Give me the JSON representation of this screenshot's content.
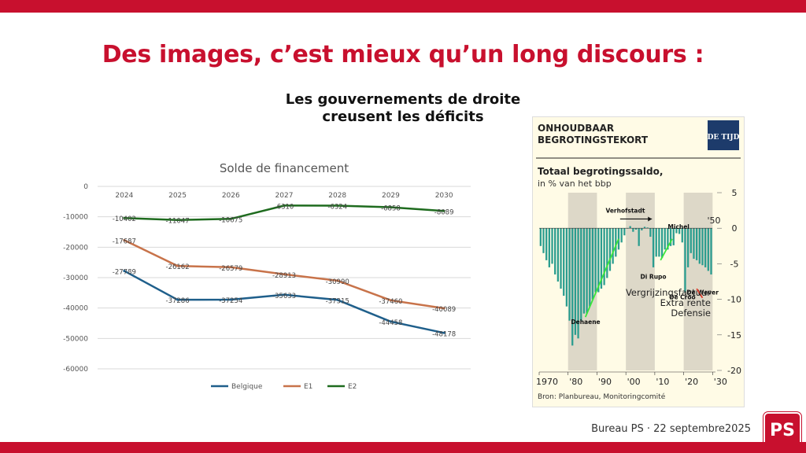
{
  "slide": {
    "title": "Des images, c’est mieux qu’un long discours :",
    "subtitle_line1": "Les gouvernements de droite",
    "subtitle_line2": "creusent les déficits",
    "footer": "Bureau PS · 22 septembre2025",
    "logo_text": "PS",
    "accent_color": "#c8102e"
  },
  "chart_data": [
    {
      "type": "line",
      "title": "Solde de financement",
      "categories": [
        "2024",
        "2025",
        "2026",
        "2027",
        "2028",
        "2029",
        "2030"
      ],
      "ylim": [
        -60000,
        0
      ],
      "yticks": [
        0,
        -10000,
        -20000,
        -30000,
        -40000,
        -50000,
        -60000
      ],
      "grid": true,
      "legend_position": "bottom",
      "series": [
        {
          "name": "Belgique",
          "color": "#1f5f8b",
          "values": [
            -27789,
            -37286,
            -37254,
            -35633,
            -37315,
            -44458,
            -48178
          ],
          "labels": [
            "-27789",
            "-37286",
            "-37254",
            "-35633",
            "-37315",
            "-44458",
            "-48178"
          ]
        },
        {
          "name": "E1",
          "color": "#c8734a",
          "values": [
            -17687,
            -26162,
            -26579,
            -28913,
            -30990,
            -37460,
            -40089
          ],
          "labels": [
            "-17687",
            "-26162",
            "-26579",
            "-28913",
            "-30990",
            "-37460",
            "-40089"
          ]
        },
        {
          "name": "E2",
          "color": "#1e6b1e",
          "values": [
            -10402,
            -11047,
            -10675,
            -6310,
            -6324,
            -6858,
            -8089
          ],
          "labels": [
            "-10402",
            "-11047",
            "-10675",
            "-6310",
            "-6324",
            "-6858",
            "-8089"
          ]
        }
      ]
    },
    {
      "type": "bar",
      "source": "DE TIJD",
      "header_line1": "ONHOUDBAAR",
      "header_line2": "BEGROTINGSTEKORT",
      "title": "Totaal begrotingssaldo,",
      "subtitle": "in % van het bbp",
      "x_tick_labels": [
        "1970",
        "'80",
        "'90",
        "'00",
        "'10",
        "'20",
        "'30"
      ],
      "x_ticks": [
        1970,
        1980,
        1990,
        2000,
        2010,
        2020,
        2030
      ],
      "xlim": [
        1970,
        2031
      ],
      "y_tick_labels": [
        "5",
        "0",
        "-5",
        "-10",
        "-15",
        "-20"
      ],
      "y_ticks": [
        5,
        0,
        -5,
        -10,
        -15,
        -20
      ],
      "ylim": [
        -20,
        5
      ],
      "shaded_decades": [
        [
          1980,
          1990
        ],
        [
          2000,
          2010
        ],
        [
          2020,
          2030
        ]
      ],
      "bar_color": "#2a9d8f",
      "years": [
        1970,
        1971,
        1972,
        1973,
        1974,
        1975,
        1976,
        1977,
        1978,
        1979,
        1980,
        1981,
        1982,
        1983,
        1984,
        1985,
        1986,
        1987,
        1988,
        1989,
        1990,
        1991,
        1992,
        1993,
        1994,
        1995,
        1996,
        1997,
        1998,
        1999,
        2000,
        2001,
        2002,
        2003,
        2004,
        2005,
        2006,
        2007,
        2008,
        2009,
        2010,
        2011,
        2012,
        2013,
        2014,
        2015,
        2016,
        2017,
        2018,
        2019,
        2020,
        2021,
        2022,
        2023,
        2024,
        2025,
        2026,
        2027,
        2028,
        2029
      ],
      "values": [
        -2.5,
        -3.5,
        -4.5,
        -5.5,
        -5,
        -6.5,
        -7.5,
        -8.5,
        -9.5,
        -11,
        -13,
        -16.5,
        -15,
        -15.5,
        -13,
        -12,
        -12,
        -11,
        -10,
        -9,
        -9,
        -8.5,
        -8,
        -7,
        -6,
        -5,
        -4,
        -3,
        -2,
        -1,
        0,
        0.3,
        -0.5,
        -0.2,
        -2.5,
        -0.3,
        0.2,
        0.1,
        -1.2,
        -5.5,
        -4,
        -4,
        -4.2,
        -3,
        -3,
        -2.5,
        -2.4,
        -0.7,
        -0.8,
        -2,
        -9,
        -5.5,
        -3.5,
        -4.3,
        -4.5,
        -5,
        -5.2,
        -5.5,
        -6,
        -6.5
      ],
      "label_50": "'50",
      "annotations": [
        "Verhofstadt",
        "Michel",
        "Di Rupo",
        "Dehaene",
        "De Croo",
        "De Wever"
      ],
      "legend_lines": [
        "Vergrijzingsfactuur",
        "Extra rente",
        "Defensie"
      ],
      "source_note": "Bron: Planbureau, Monitoringcomité"
    }
  ]
}
